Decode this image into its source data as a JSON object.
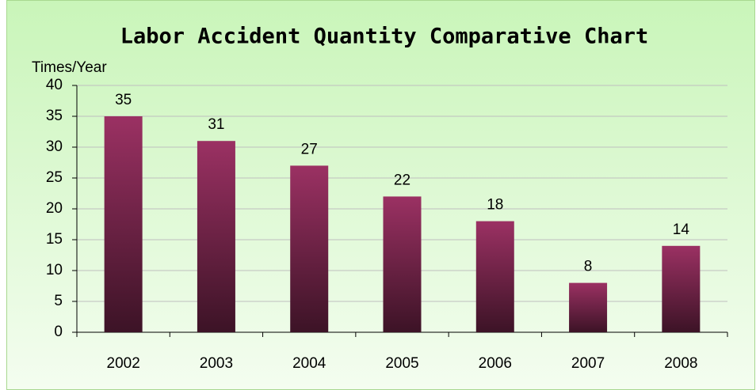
{
  "chart_data": {
    "type": "bar",
    "title": "Labor Accident Quantity Comparative Chart",
    "y_axis_label": "Times/Year",
    "categories": [
      "2002",
      "2003",
      "2004",
      "2005",
      "2006",
      "2007",
      "2008"
    ],
    "values": [
      35,
      31,
      27,
      22,
      18,
      8,
      14
    ],
    "color": "#9b3163",
    "ylim": [
      0,
      40
    ],
    "yticks": [
      0,
      5,
      10,
      15,
      20,
      25,
      30,
      35,
      40
    ],
    "grid": true
  }
}
